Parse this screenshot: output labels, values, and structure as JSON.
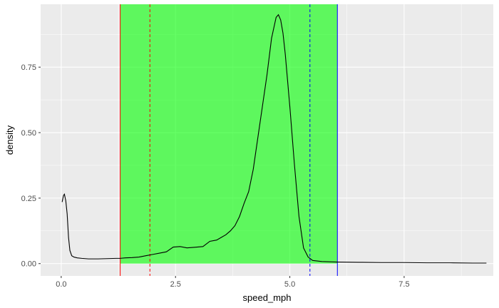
{
  "chart_data": {
    "type": "area",
    "xlabel": "speed_mph",
    "ylabel": "density",
    "xlim": [
      -0.45,
      9.45
    ],
    "ylim": [
      -0.047,
      0.99
    ],
    "x_ticks": [
      0.0,
      2.5,
      5.0,
      7.5
    ],
    "x_tick_labels": [
      "0.0",
      "2.5",
      "5.0",
      "7.5"
    ],
    "y_ticks": [
      0.0,
      0.25,
      0.5,
      0.75
    ],
    "y_tick_labels": [
      "0.00",
      "0.25",
      "0.50",
      "0.75"
    ],
    "grid": true,
    "highlight_band": {
      "x_start": 1.29,
      "x_end": 6.04,
      "color": "#00ff00",
      "opacity": 0.6
    },
    "vlines": [
      {
        "x": 1.29,
        "color": "#ff0000",
        "style": "solid"
      },
      {
        "x": 1.94,
        "color": "#ff0000",
        "style": "dashed"
      },
      {
        "x": 5.44,
        "color": "#0000ff",
        "style": "dashed"
      },
      {
        "x": 6.04,
        "color": "#0000ff",
        "style": "solid"
      }
    ],
    "colors": {
      "panel": "#ebebeb",
      "grid": "#ffffff",
      "curve": "#000000"
    },
    "series": [
      {
        "x": [
          0.02,
          0.05,
          0.07,
          0.1,
          0.13,
          0.16,
          0.19,
          0.23,
          0.28,
          0.35,
          0.45,
          0.6,
          0.8,
          1.0,
          1.2,
          1.29,
          1.4,
          1.55,
          1.7,
          1.85,
          2.0,
          2.15,
          2.3,
          2.45,
          2.6,
          2.75,
          2.9,
          3.1,
          3.25,
          3.4,
          3.5,
          3.6,
          3.7,
          3.8,
          3.9,
          4.0,
          4.1,
          4.2,
          4.3,
          4.4,
          4.5,
          4.6,
          4.7,
          4.75,
          4.8,
          4.85,
          4.9,
          5.0,
          5.1,
          5.2,
          5.3,
          5.4,
          5.5,
          5.7,
          6.04,
          6.5,
          7.0,
          7.5,
          8.0,
          8.5,
          9.0,
          9.3
        ],
        "y": [
          0.235,
          0.26,
          0.265,
          0.24,
          0.19,
          0.1,
          0.05,
          0.03,
          0.025,
          0.022,
          0.02,
          0.018,
          0.018,
          0.019,
          0.02,
          0.02,
          0.022,
          0.023,
          0.025,
          0.03,
          0.035,
          0.04,
          0.045,
          0.063,
          0.065,
          0.06,
          0.062,
          0.065,
          0.085,
          0.09,
          0.1,
          0.11,
          0.125,
          0.145,
          0.18,
          0.23,
          0.275,
          0.36,
          0.48,
          0.6,
          0.72,
          0.86,
          0.94,
          0.95,
          0.93,
          0.88,
          0.8,
          0.6,
          0.38,
          0.18,
          0.06,
          0.025,
          0.012,
          0.008,
          0.006,
          0.005,
          0.004,
          0.004,
          0.003,
          0.003,
          0.002,
          0.002
        ]
      }
    ]
  }
}
